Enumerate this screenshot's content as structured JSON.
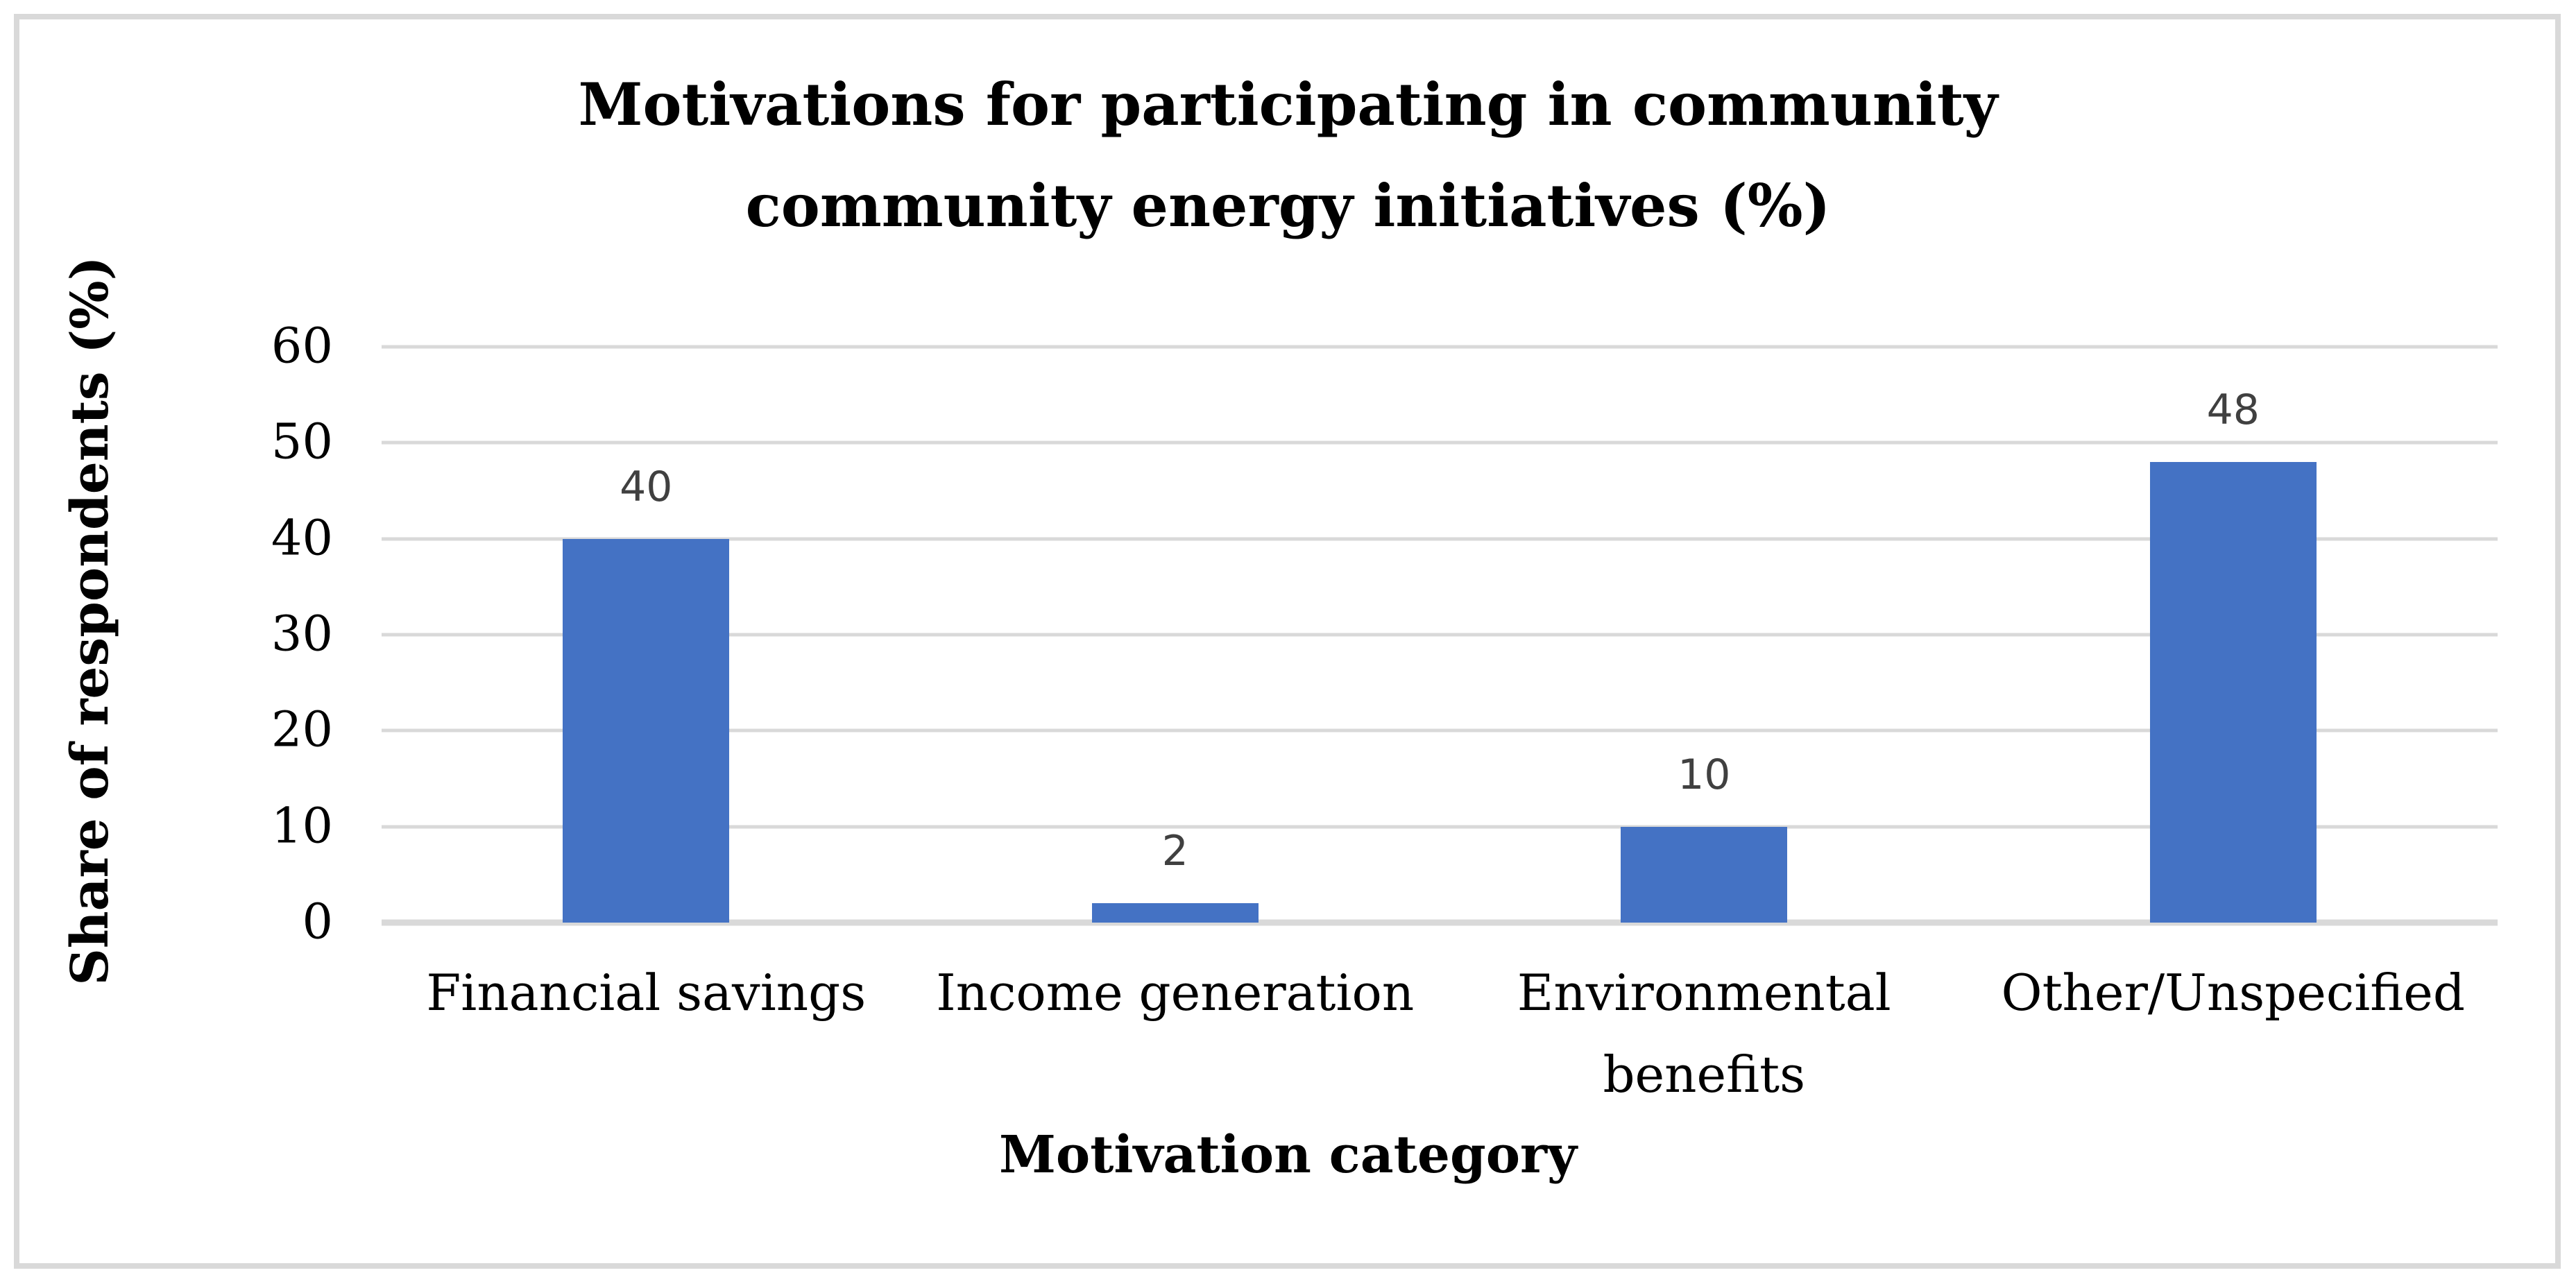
{
  "title": {
    "line1": "Motivations for participating in community",
    "line2": "community energy initiatives (%)"
  },
  "chart_data": {
    "type": "bar",
    "title": "Motivations for participating in community community energy initiatives (%)",
    "categories": [
      "Financial savings",
      "Income generation",
      "Environmental benefits",
      "Other/Unspecified"
    ],
    "values": [
      40,
      2,
      10,
      48
    ],
    "xlabel": "Motivation category",
    "ylabel": "Share of respondents (%)",
    "ylim": [
      0,
      60
    ],
    "yticks": [
      60,
      50,
      40,
      30,
      20,
      10,
      0
    ],
    "grid": true,
    "legend": "none",
    "bar_color": "#4472C4",
    "gridline_color": "#D9D9D9",
    "data_label_color": "#404040",
    "frame_color": "#D9D9D9"
  }
}
